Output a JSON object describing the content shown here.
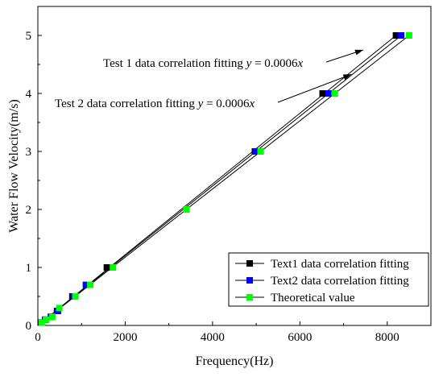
{
  "chart_data": {
    "type": "scatter",
    "xlabel": "Frequency(Hz)",
    "ylabel": "Water Flow Velocity(m/s)",
    "xlim": [
      0,
      9000
    ],
    "ylim": [
      0,
      5.5
    ],
    "xticks": [
      0,
      2000,
      4000,
      6000,
      8000
    ],
    "xtick_labels": [
      "0",
      "2000",
      "4000",
      "6000",
      "8000"
    ],
    "yticks": [
      0,
      1,
      2,
      3,
      4,
      5
    ],
    "ytick_labels": [
      "0",
      "1",
      "2",
      "3",
      "4",
      "5"
    ],
    "grid": false,
    "legend_position": "bottom-right",
    "series": [
      {
        "name": "Text1 data correlation fitting",
        "color": "#000000",
        "x": [
          70,
          165,
          300,
          440,
          790,
          1580,
          4970,
          6520,
          8200
        ],
        "y": [
          0.05,
          0.1,
          0.15,
          0.25,
          0.5,
          1,
          3,
          4,
          5
        ]
      },
      {
        "name": "Text2 data correlation fitting",
        "color": "#0000ff",
        "x": [
          80,
          175,
          310,
          460,
          830,
          1100,
          5000,
          6650,
          8320
        ],
        "y": [
          0.05,
          0.1,
          0.15,
          0.25,
          0.5,
          0.7,
          3,
          4,
          5
        ]
      },
      {
        "name": "Theoretical value",
        "color": "#00ff00",
        "x": [
          90,
          185,
          330,
          490,
          860,
          1200,
          1720,
          3400,
          5100,
          6800,
          8500
        ],
        "y": [
          0.05,
          0.1,
          0.15,
          0.3,
          0.5,
          0.7,
          1,
          2,
          3,
          4,
          5
        ]
      }
    ],
    "fit_lines": [
      {
        "x": [
          0,
          8200
        ],
        "y": [
          0,
          5
        ]
      },
      {
        "x": [
          0,
          8320
        ],
        "y": [
          0,
          5
        ]
      },
      {
        "x": [
          0,
          8500
        ],
        "y": [
          0,
          5
        ]
      }
    ],
    "annotations": [
      {
        "text_prefix": "Test 1 data correlation fitting ",
        "var_y": "y",
        "equals": " = 0.0006",
        "var_x": "x",
        "arrow_to_data": {
          "x": 7450,
          "y": 4.75
        }
      },
      {
        "text_prefix": "Test 2 data correlation fitting ",
        "var_y": "y",
        "equals": " = 0.0006",
        "var_x": "x",
        "arrow_to_data": {
          "x": 7180,
          "y": 4.33
        }
      }
    ]
  }
}
